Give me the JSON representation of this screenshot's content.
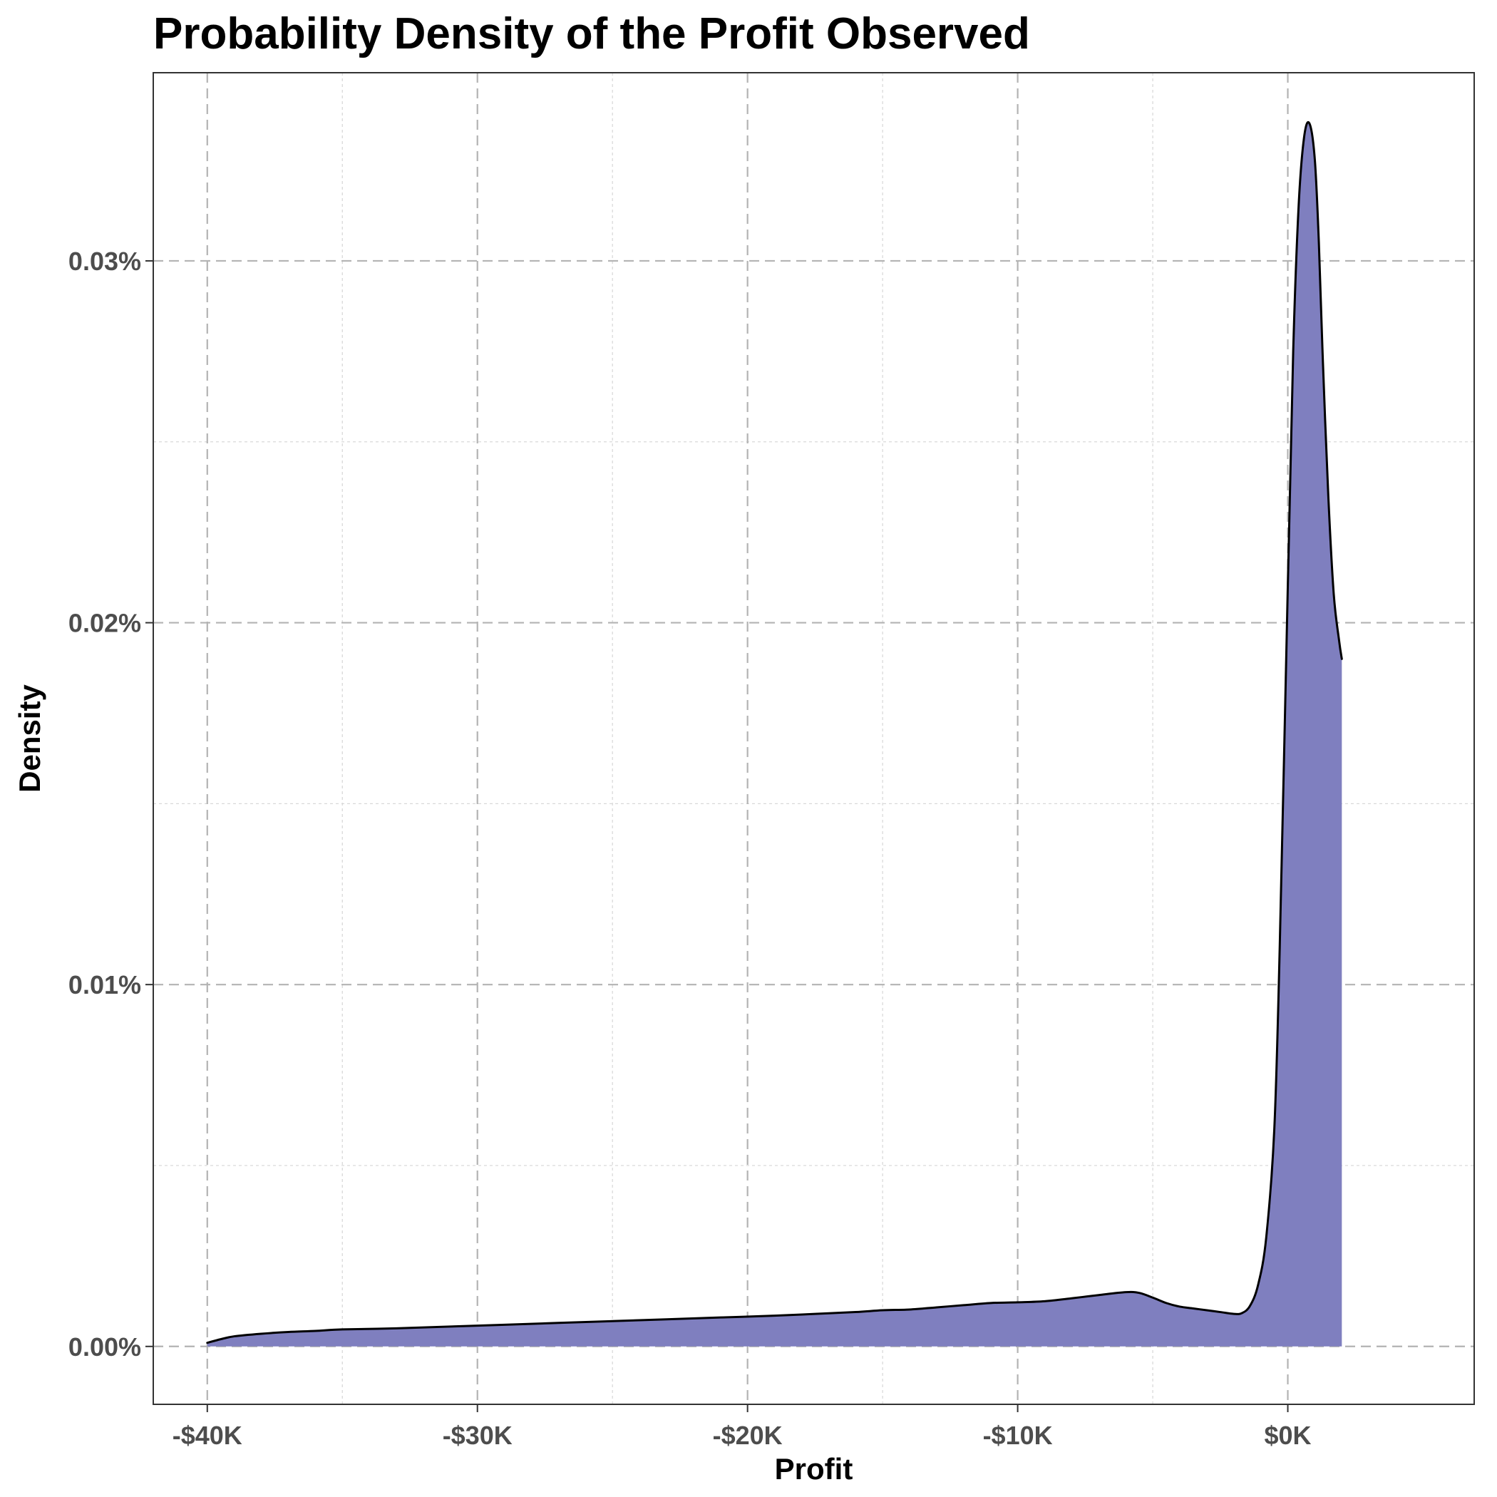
{
  "chart_data": {
    "type": "area",
    "title": "Probability Density of the Profit Observed",
    "xlabel": "Profit",
    "ylabel": "Density",
    "x_unit": "USD",
    "xlim": [
      -42000,
      6900
    ],
    "ylim": [
      -1.6e-05,
      0.000352
    ],
    "x_ticks": [
      -40000,
      -30000,
      -20000,
      -10000,
      0
    ],
    "x_tick_labels": [
      "-$40K",
      "-$30K",
      "-$20K",
      "-$10K",
      "$0K"
    ],
    "x_minor_ticks": [
      -35000,
      -25000,
      -15000,
      -5000
    ],
    "y_ticks": [
      0,
      0.0001,
      0.0002,
      0.0003
    ],
    "y_tick_labels": [
      "0.00%",
      "0.01%",
      "0.02%",
      "0.03%"
    ],
    "y_minor_ticks": [
      5e-05,
      0.00015,
      0.00025
    ],
    "grid": true,
    "grid_style": "dashed",
    "legend": "none",
    "fill_color": "#7f7fbf",
    "line_color": "#000000",
    "series": [
      {
        "x": [
          -40000,
          -39500,
          -39000,
          -38000,
          -37000,
          -36000,
          -35000,
          -33000,
          -31000,
          -29000,
          -27000,
          -25000,
          -23000,
          -21000,
          -19000,
          -17500,
          -16000,
          -15000,
          -14000,
          -13000,
          -12000,
          -11000,
          -10000,
          -9000,
          -8000,
          -7000,
          -6000,
          -5500,
          -5000,
          -4500,
          -4000,
          -3500,
          -3000,
          -2500,
          -2000,
          -1700,
          -1400,
          -1100,
          -800,
          -500,
          -300,
          0,
          200,
          400,
          600,
          800,
          1000,
          1150,
          1300,
          1500,
          1700,
          1900,
          2000
        ],
        "y": [
          1e-06,
          2e-06,
          2.8e-06,
          3.5e-06,
          4e-06,
          4.3e-06,
          4.7e-06,
          5e-06,
          5.5e-06,
          6e-06,
          6.5e-06,
          7e-06,
          7.5e-06,
          8e-06,
          8.5e-06,
          9e-06,
          9.5e-06,
          1e-05,
          1.02e-05,
          1.08e-05,
          1.14e-05,
          1.2e-05,
          1.22e-05,
          1.25e-05,
          1.33e-05,
          1.42e-05,
          1.5e-05,
          1.48e-05,
          1.35e-05,
          1.2e-05,
          1.1e-05,
          1.05e-05,
          1e-05,
          9.5e-06,
          9e-06,
          9.2e-06,
          1.12e-05,
          1.7e-05,
          3e-05,
          6e-05,
          0.00011,
          0.00021,
          0.000275,
          0.000315,
          0.000334,
          0.000338,
          0.000328,
          0.000305,
          0.000272,
          0.000235,
          0.000208,
          0.000195,
          0.00019
        ]
      }
    ]
  }
}
